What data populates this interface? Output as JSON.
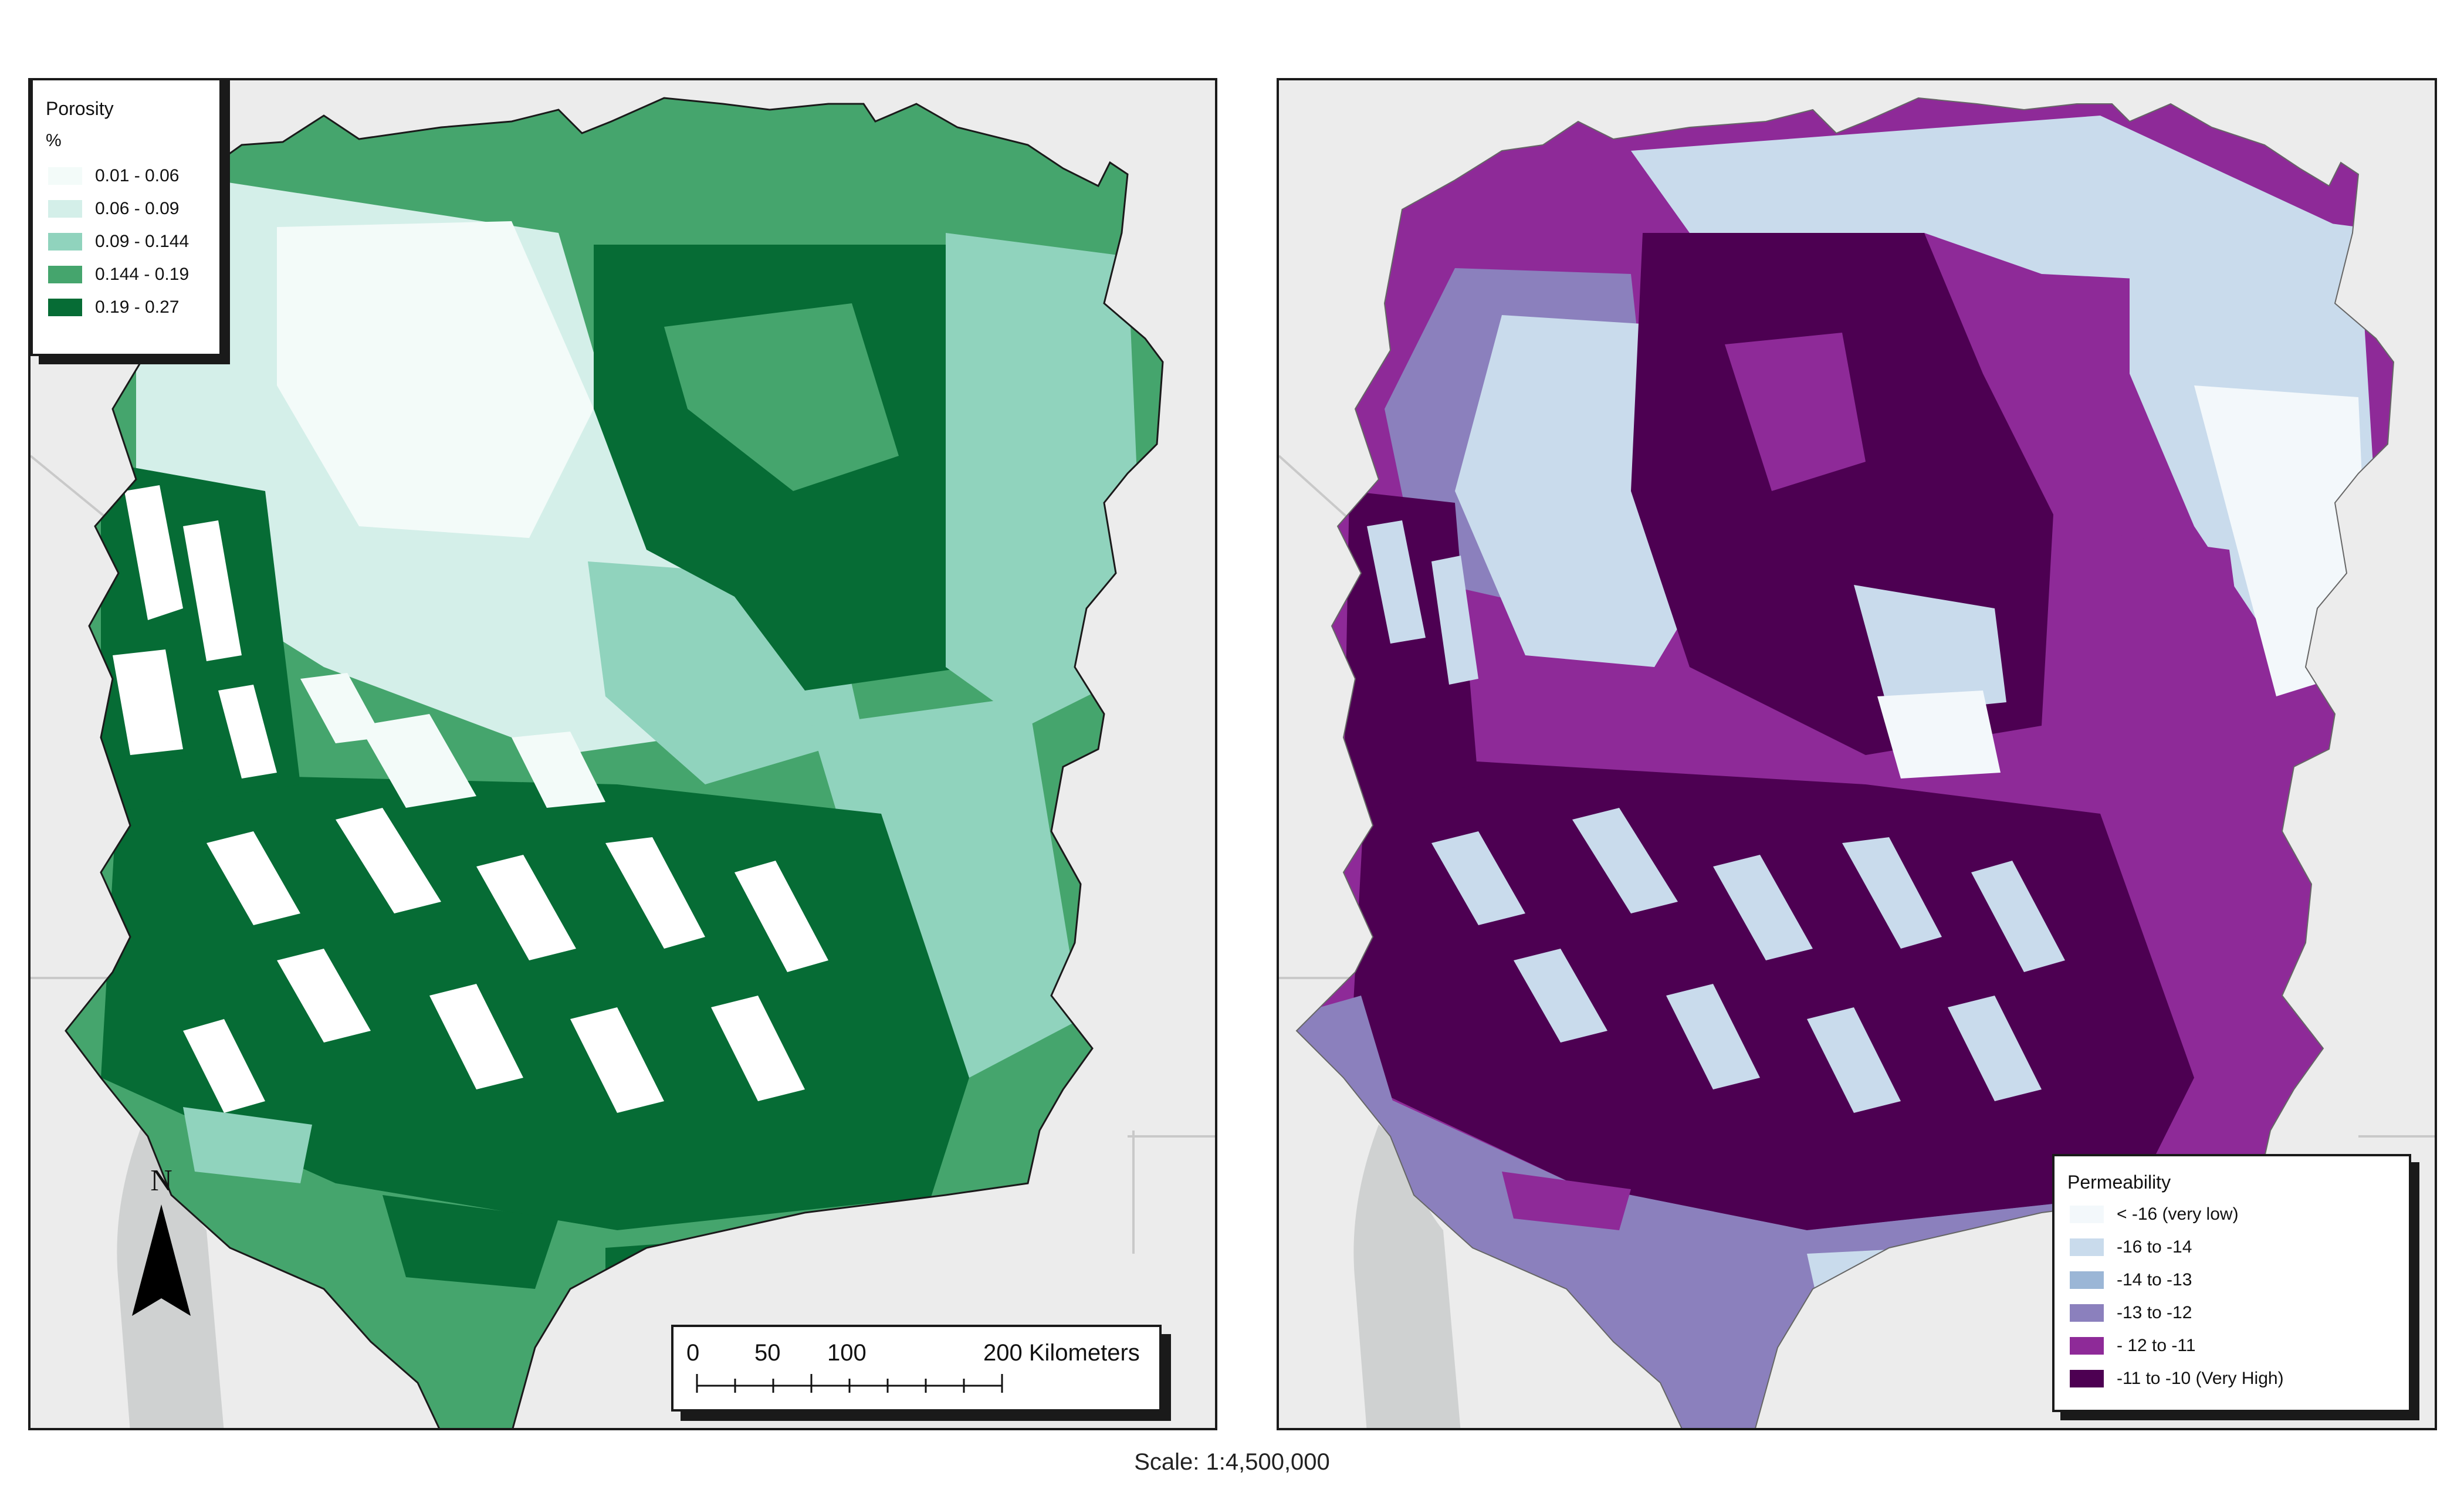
{
  "porosity_legend": {
    "title": "Porosity",
    "unit": "%",
    "classes": [
      {
        "label": "0.01 - 0.06",
        "color": "#f3fbf9"
      },
      {
        "label": "0.06 - 0.09",
        "color": "#d4efe9"
      },
      {
        "label": "0.09 - 0.144",
        "color": "#90d3bd"
      },
      {
        "label": "0.144 - 0.19",
        "color": "#45a56d"
      },
      {
        "label": "0.19 - 0.27",
        "color": "#066c35"
      }
    ]
  },
  "permeability_legend": {
    "title": "Permeability",
    "classes": [
      {
        "label": "< -16 (very low)",
        "color": "#f3f8fb"
      },
      {
        "label": "-16 to -14",
        "color": "#c9dbec"
      },
      {
        "label": "-14 to -13",
        "color": "#9bb6d6"
      },
      {
        "label": "-13 to -12",
        "color": "#8b80bd"
      },
      {
        "label": "- 12 to -11",
        "color": "#8e2a98"
      },
      {
        "label": "-11 to -10 (Very High)",
        "color": "#4d0052"
      }
    ]
  },
  "scale_bar": {
    "ticks": [
      "0",
      "50",
      "100",
      "200 Kilometers"
    ]
  },
  "north_arrow": {
    "label": "N"
  },
  "scale_text": "Scale: 1:4,500,000",
  "colors": {
    "basemap": "#ececec",
    "ocean_land_grey": "#cfd1d1",
    "frame": "#1a1a1a"
  }
}
